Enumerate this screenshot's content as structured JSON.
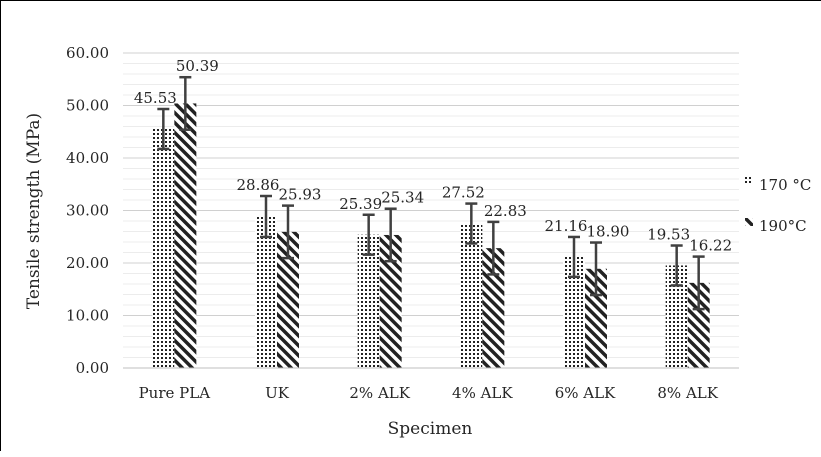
{
  "chart_data": {
    "type": "bar",
    "title": "",
    "xlabel": "Specimen",
    "ylabel": "Tensile strength (MPa)",
    "ylim": [
      0,
      60
    ],
    "y_ticks": [
      "0.00",
      "10.00",
      "20.00",
      "30.00",
      "40.00",
      "50.00",
      "60.00"
    ],
    "categories": [
      "Pure PLA",
      "UK",
      "2% ALK",
      "4% ALK",
      "6% ALK",
      "8% ALK"
    ],
    "series": [
      {
        "name": "170 °C",
        "pattern": "dots",
        "values": [
          45.53,
          28.86,
          25.39,
          27.52,
          21.16,
          19.53
        ],
        "labels": [
          "45.53",
          "28.86",
          "25.39",
          "27.52",
          "21.16",
          "19.53"
        ],
        "error": [
          3.8,
          3.9,
          3.8,
          3.8,
          3.8,
          3.8
        ]
      },
      {
        "name": "190°C",
        "pattern": "diagonal-hatch",
        "values": [
          50.39,
          25.93,
          25.34,
          22.83,
          18.9,
          16.22
        ],
        "labels": [
          "50.39",
          "25.93",
          "25.34",
          "22.83",
          "18.90",
          "16.22"
        ],
        "error": [
          5.0,
          5.0,
          5.0,
          5.0,
          5.0,
          5.0
        ]
      }
    ],
    "grid": true,
    "legend": "right",
    "colors": {
      "bar_pattern": "#222222",
      "grid": "#d9d9d9",
      "error_bar": "#404040"
    }
  }
}
